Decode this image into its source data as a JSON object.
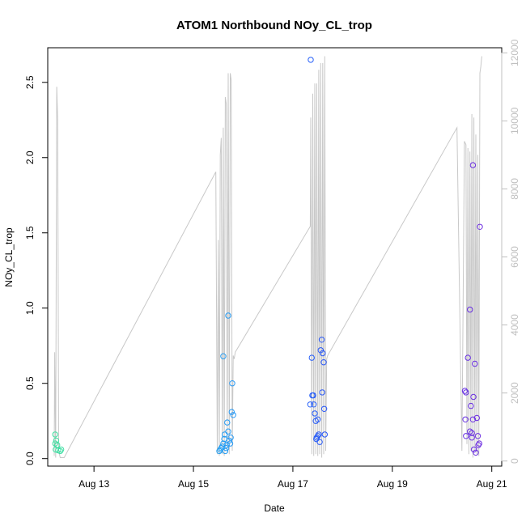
{
  "chart_data": {
    "type": "scatter",
    "title": "ATOM1 Northbound NOy_CL_trop",
    "xlabel": "Date",
    "ylabel": "NOy_CL_trop",
    "x_unit": "day of August 2016 (decimal)",
    "xlim": [
      12.07,
      21.2
    ],
    "ylim": [
      -0.05,
      2.73
    ],
    "y2lim": [
      -150,
      12150
    ],
    "x_ticks": [
      13,
      15,
      17,
      19,
      21
    ],
    "x_tick_labels": [
      "Aug 13",
      "Aug 15",
      "Aug 17",
      "Aug 19",
      "Aug 21"
    ],
    "y_ticks": [
      0.0,
      0.5,
      1.0,
      1.5,
      2.0,
      2.5
    ],
    "y_tick_labels": [
      "0.0",
      "0.5",
      "1.0",
      "1.5",
      "2.0",
      "2.5"
    ],
    "y2_ticks": [
      0,
      2000,
      4000,
      6000,
      8000,
      10000,
      12000
    ],
    "y2_tick_labels": [
      "0",
      "2000",
      "4000",
      "6000",
      "8000",
      "10000",
      "12000"
    ],
    "grid": false,
    "series": [
      {
        "kind": "points",
        "axis": "left",
        "color_scale": [
          "#40e0a0",
          "#30c8e0",
          "#2080ff",
          "#3030f0",
          "#7030e0"
        ],
        "points": [
          {
            "x": 12.22,
            "y": 0.16
          },
          {
            "x": 12.24,
            "y": 0.12
          },
          {
            "x": 12.22,
            "y": 0.1
          },
          {
            "x": 12.26,
            "y": 0.09
          },
          {
            "x": 12.23,
            "y": 0.06
          },
          {
            "x": 12.28,
            "y": 0.055
          },
          {
            "x": 12.32,
            "y": 0.05
          },
          {
            "x": 12.34,
            "y": 0.06
          },
          {
            "x": 15.52,
            "y": 0.05
          },
          {
            "x": 15.54,
            "y": 0.06
          },
          {
            "x": 15.56,
            "y": 0.07
          },
          {
            "x": 15.58,
            "y": 0.08
          },
          {
            "x": 15.6,
            "y": 0.1
          },
          {
            "x": 15.62,
            "y": 0.13
          },
          {
            "x": 15.63,
            "y": 0.16
          },
          {
            "x": 15.64,
            "y": 0.05
          },
          {
            "x": 15.66,
            "y": 0.07
          },
          {
            "x": 15.67,
            "y": 0.09
          },
          {
            "x": 15.68,
            "y": 0.24
          },
          {
            "x": 15.7,
            "y": 0.95
          },
          {
            "x": 15.7,
            "y": 0.18
          },
          {
            "x": 15.72,
            "y": 0.12
          },
          {
            "x": 15.74,
            "y": 0.1
          },
          {
            "x": 15.75,
            "y": 0.14
          },
          {
            "x": 15.77,
            "y": 0.31
          },
          {
            "x": 15.8,
            "y": 0.29
          },
          {
            "x": 15.6,
            "y": 0.68
          },
          {
            "x": 15.78,
            "y": 0.5
          },
          {
            "x": 17.36,
            "y": 2.65
          },
          {
            "x": 17.38,
            "y": 0.67
          },
          {
            "x": 17.35,
            "y": 0.36
          },
          {
            "x": 17.39,
            "y": 0.42
          },
          {
            "x": 17.41,
            "y": 0.42
          },
          {
            "x": 17.42,
            "y": 0.36
          },
          {
            "x": 17.44,
            "y": 0.3
          },
          {
            "x": 17.46,
            "y": 0.25
          },
          {
            "x": 17.48,
            "y": 0.14
          },
          {
            "x": 17.5,
            "y": 0.26
          },
          {
            "x": 17.52,
            "y": 0.16
          },
          {
            "x": 17.54,
            "y": 0.11
          },
          {
            "x": 17.56,
            "y": 0.72
          },
          {
            "x": 17.58,
            "y": 0.79
          },
          {
            "x": 17.6,
            "y": 0.7
          },
          {
            "x": 17.59,
            "y": 0.44
          },
          {
            "x": 17.62,
            "y": 0.64
          },
          {
            "x": 17.63,
            "y": 0.33
          },
          {
            "x": 17.64,
            "y": 0.16
          },
          {
            "x": 17.5,
            "y": 0.15
          },
          {
            "x": 17.47,
            "y": 0.13
          },
          {
            "x": 20.46,
            "y": 0.45
          },
          {
            "x": 20.48,
            "y": 0.44
          },
          {
            "x": 20.47,
            "y": 0.26
          },
          {
            "x": 20.48,
            "y": 0.15
          },
          {
            "x": 20.52,
            "y": 0.67
          },
          {
            "x": 20.56,
            "y": 0.99
          },
          {
            "x": 20.58,
            "y": 0.35
          },
          {
            "x": 20.6,
            "y": 0.17
          },
          {
            "x": 20.6,
            "y": 0.14
          },
          {
            "x": 20.62,
            "y": 0.26
          },
          {
            "x": 20.63,
            "y": 0.41
          },
          {
            "x": 20.64,
            "y": 0.06
          },
          {
            "x": 20.66,
            "y": 0.63
          },
          {
            "x": 20.68,
            "y": 0.04
          },
          {
            "x": 20.7,
            "y": 0.27
          },
          {
            "x": 20.72,
            "y": 0.15
          },
          {
            "x": 20.73,
            "y": 0.09
          },
          {
            "x": 20.75,
            "y": 0.1
          },
          {
            "x": 20.62,
            "y": 1.95
          },
          {
            "x": 20.76,
            "y": 1.54
          },
          {
            "x": 20.56,
            "y": 0.18
          }
        ]
      },
      {
        "kind": "line",
        "axis": "right",
        "color": "#c8c8c8",
        "x": [
          12.2,
          12.21,
          12.23,
          12.25,
          12.27,
          12.29,
          12.32,
          12.4,
          15.45,
          15.48,
          15.5,
          15.52,
          15.54,
          15.56,
          15.58,
          15.6,
          15.62,
          15.64,
          15.66,
          15.68,
          15.7,
          15.72,
          15.74,
          15.76,
          15.78,
          15.8,
          15.82,
          15.84,
          17.35,
          17.36,
          17.38,
          17.4,
          17.42,
          17.44,
          17.46,
          17.48,
          17.5,
          17.52,
          17.54,
          17.56,
          17.58,
          17.6,
          17.62,
          17.64,
          17.66,
          17.68,
          17.7,
          20.3,
          20.4,
          20.45,
          20.48,
          20.5,
          20.52,
          20.54,
          20.56,
          20.58,
          20.6,
          20.62,
          20.64,
          20.66,
          20.68,
          20.7,
          20.72,
          20.74,
          20.76,
          20.78,
          20.8
        ],
        "y": [
          150,
          3200,
          100,
          11000,
          10000,
          300,
          100,
          100,
          8500,
          200,
          6500,
          150,
          9000,
          9500,
          200,
          9800,
          150,
          10700,
          10500,
          300,
          11400,
          200,
          11400,
          11200,
          300,
          3100,
          3000,
          3200,
          6900,
          10100,
          200,
          10800,
          150,
          11100,
          200,
          11100,
          150,
          11500,
          200,
          11700,
          100,
          11700,
          200,
          11900,
          300,
          3000,
          3100,
          9800,
          300,
          9400,
          9300,
          500,
          9200,
          200,
          9100,
          300,
          10200,
          100,
          10100,
          300,
          9600,
          200,
          9000,
          150,
          11400,
          11600,
          11900
        ]
      }
    ]
  }
}
